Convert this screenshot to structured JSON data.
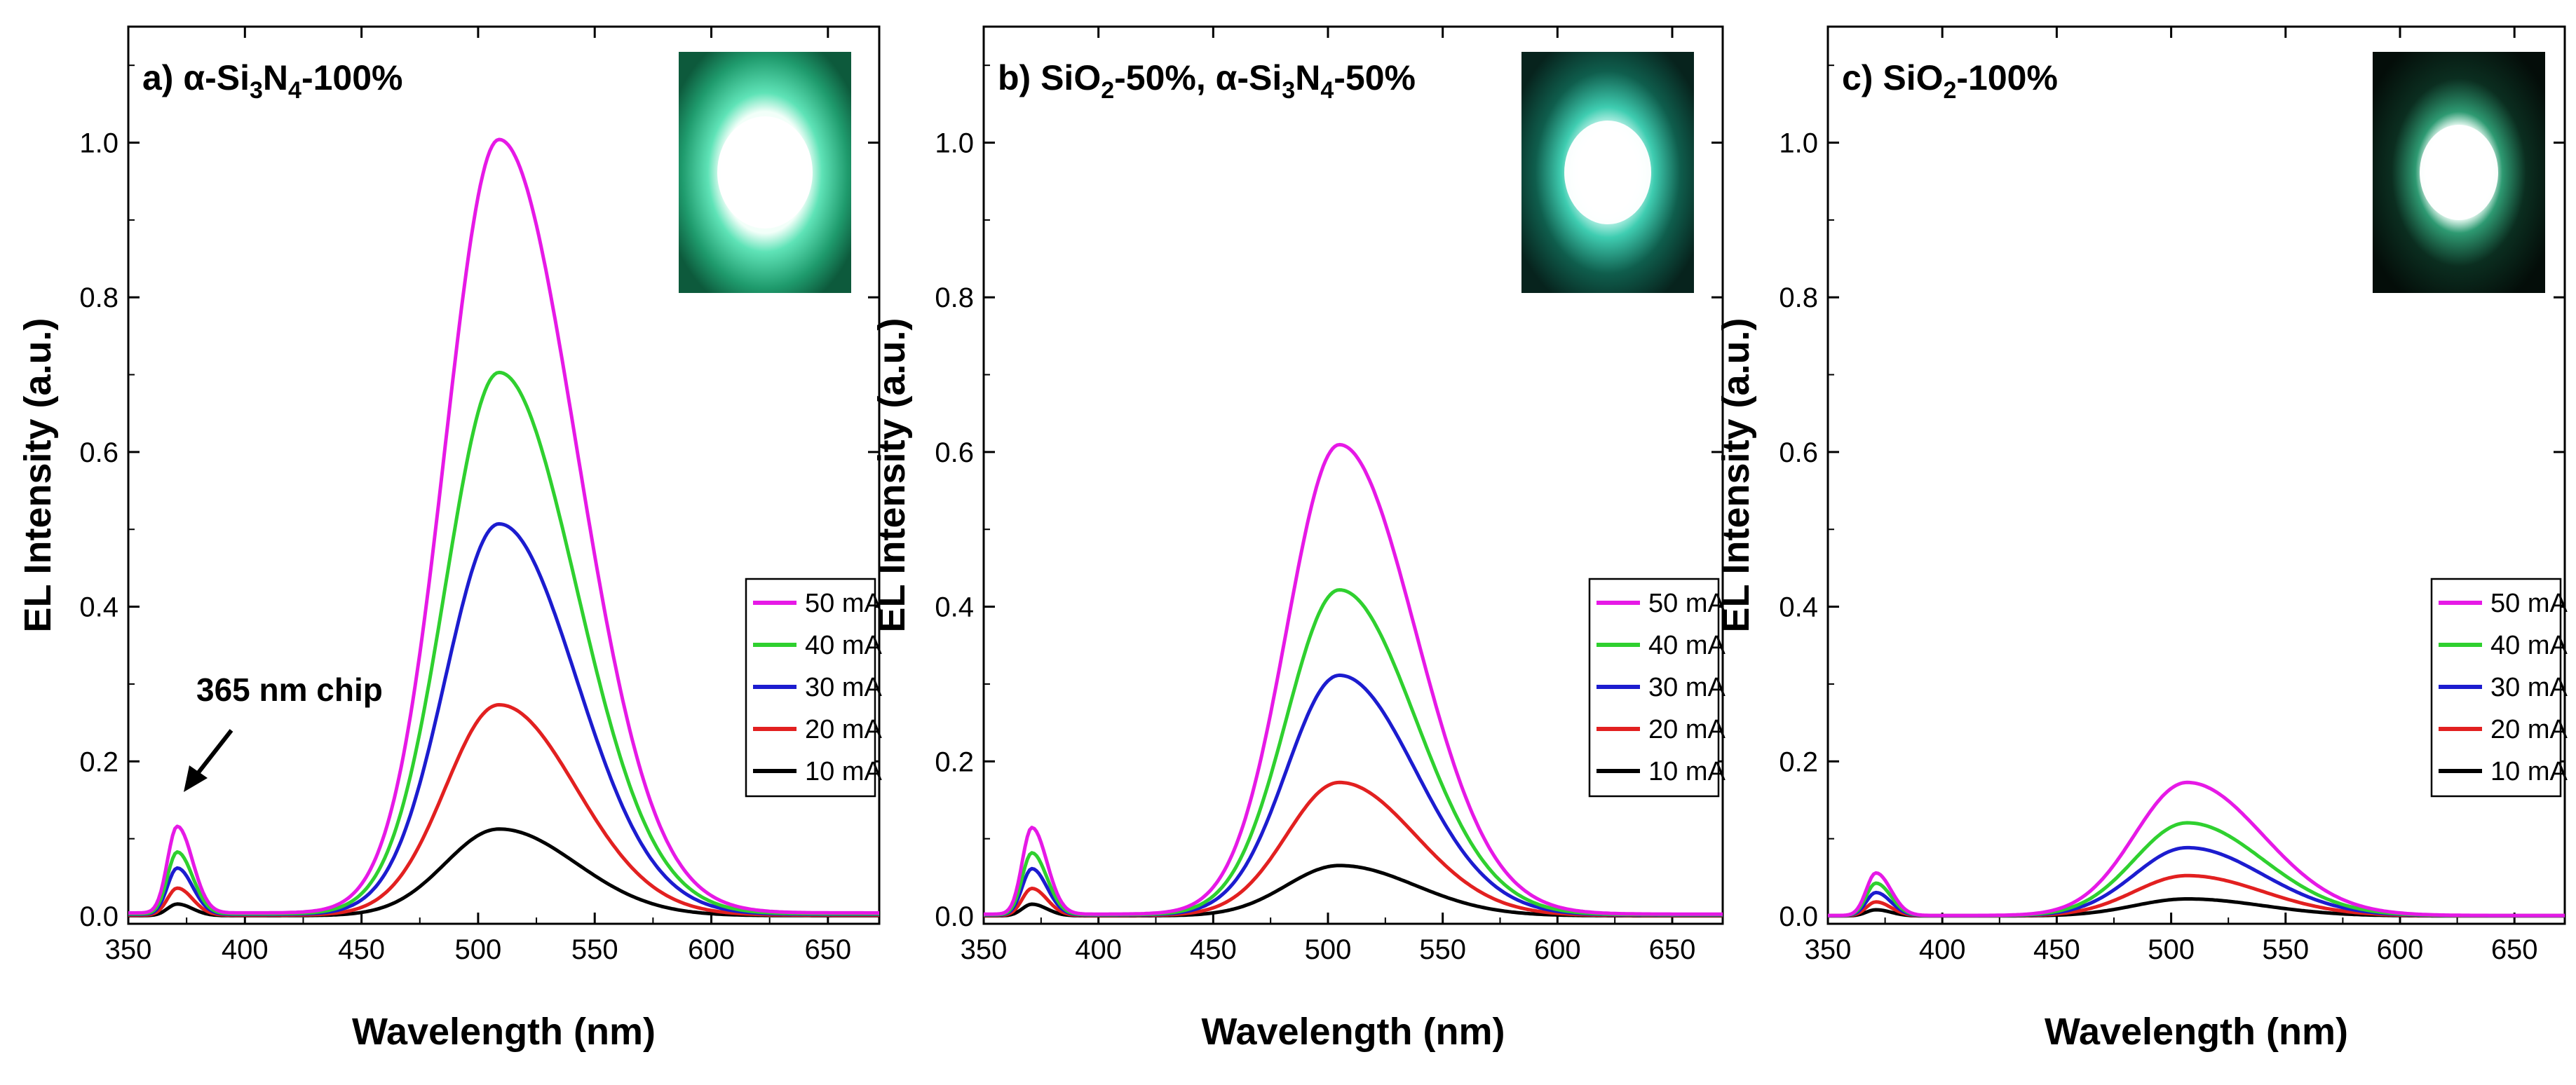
{
  "figure": {
    "annotation": "365 nm chip",
    "panel_titles": [
      [
        "a) ",
        "α-Si",
        "3",
        "N",
        "4",
        "-100%"
      ],
      [
        "b) SiO",
        "2",
        "-50%, ",
        "α-Si",
        "3",
        "N",
        "4",
        "-50%"
      ],
      [
        "c) SiO",
        "2",
        "-100%"
      ]
    ]
  },
  "chart_data": [
    {
      "type": "line",
      "title": "a) α-Si3N4-100%",
      "xlabel": "Wavelength (nm)",
      "ylabel": "EL Intensity (a.u.)",
      "xlim": [
        350,
        672
      ],
      "ylim": [
        -0.01,
        1.15
      ],
      "xticks": [
        350,
        400,
        450,
        500,
        550,
        600,
        650
      ],
      "yticks": [
        0.0,
        0.2,
        0.4,
        0.6,
        0.8,
        1.0
      ],
      "uv_peak_nm": 371,
      "green_peak_nm": 509,
      "legend_position": "right-middle",
      "series": [
        {
          "name": "50 mA",
          "color": "#e619e6",
          "uv_peak": 0.112,
          "green_peak": 1.0
        },
        {
          "name": "40 mA",
          "color": "#2fd02f",
          "uv_peak": 0.08,
          "green_peak": 0.7
        },
        {
          "name": "30 mA",
          "color": "#1c1ccf",
          "uv_peak": 0.06,
          "green_peak": 0.505
        },
        {
          "name": "20 mA",
          "color": "#e22020",
          "uv_peak": 0.035,
          "green_peak": 0.272
        },
        {
          "name": "10 mA",
          "color": "#000000",
          "uv_peak": 0.015,
          "green_peak": 0.112
        }
      ]
    },
    {
      "type": "line",
      "title": "b) SiO2-50%, α-Si3N4-50%",
      "xlabel": "Wavelength (nm)",
      "ylabel": "EL Intensity (a.u.)",
      "xlim": [
        350,
        672
      ],
      "ylim": [
        -0.01,
        1.15
      ],
      "xticks": [
        350,
        400,
        450,
        500,
        550,
        600,
        650
      ],
      "yticks": [
        0.0,
        0.2,
        0.4,
        0.6,
        0.8,
        1.0
      ],
      "uv_peak_nm": 371,
      "green_peak_nm": 505,
      "legend_position": "right-middle",
      "series": [
        {
          "name": "50 mA",
          "color": "#e619e6",
          "uv_peak": 0.112,
          "green_peak": 0.607
        },
        {
          "name": "40 mA",
          "color": "#2fd02f",
          "uv_peak": 0.08,
          "green_peak": 0.42
        },
        {
          "name": "30 mA",
          "color": "#1c1ccf",
          "uv_peak": 0.06,
          "green_peak": 0.31
        },
        {
          "name": "20 mA",
          "color": "#e22020",
          "uv_peak": 0.035,
          "green_peak": 0.172
        },
        {
          "name": "10 mA",
          "color": "#000000",
          "uv_peak": 0.015,
          "green_peak": 0.065
        }
      ]
    },
    {
      "type": "line",
      "title": "c) SiO2-100%",
      "xlabel": "Wavelength (nm)",
      "ylabel": "EL Intensity (a.u.)",
      "xlim": [
        350,
        672
      ],
      "ylim": [
        -0.01,
        1.15
      ],
      "xticks": [
        350,
        400,
        450,
        500,
        550,
        600,
        650
      ],
      "yticks": [
        0.0,
        0.2,
        0.4,
        0.6,
        0.8,
        1.0
      ],
      "uv_peak_nm": 371,
      "green_peak_nm": 507,
      "legend_position": "right-middle",
      "series": [
        {
          "name": "50 mA",
          "color": "#e619e6",
          "uv_peak": 0.055,
          "green_peak": 0.172
        },
        {
          "name": "40 mA",
          "color": "#2fd02f",
          "uv_peak": 0.042,
          "green_peak": 0.12
        },
        {
          "name": "30 mA",
          "color": "#1c1ccf",
          "uv_peak": 0.03,
          "green_peak": 0.088
        },
        {
          "name": "20 mA",
          "color": "#e22020",
          "uv_peak": 0.018,
          "green_peak": 0.052
        },
        {
          "name": "10 mA",
          "color": "#000000",
          "uv_peak": 0.008,
          "green_peak": 0.022
        }
      ]
    }
  ]
}
